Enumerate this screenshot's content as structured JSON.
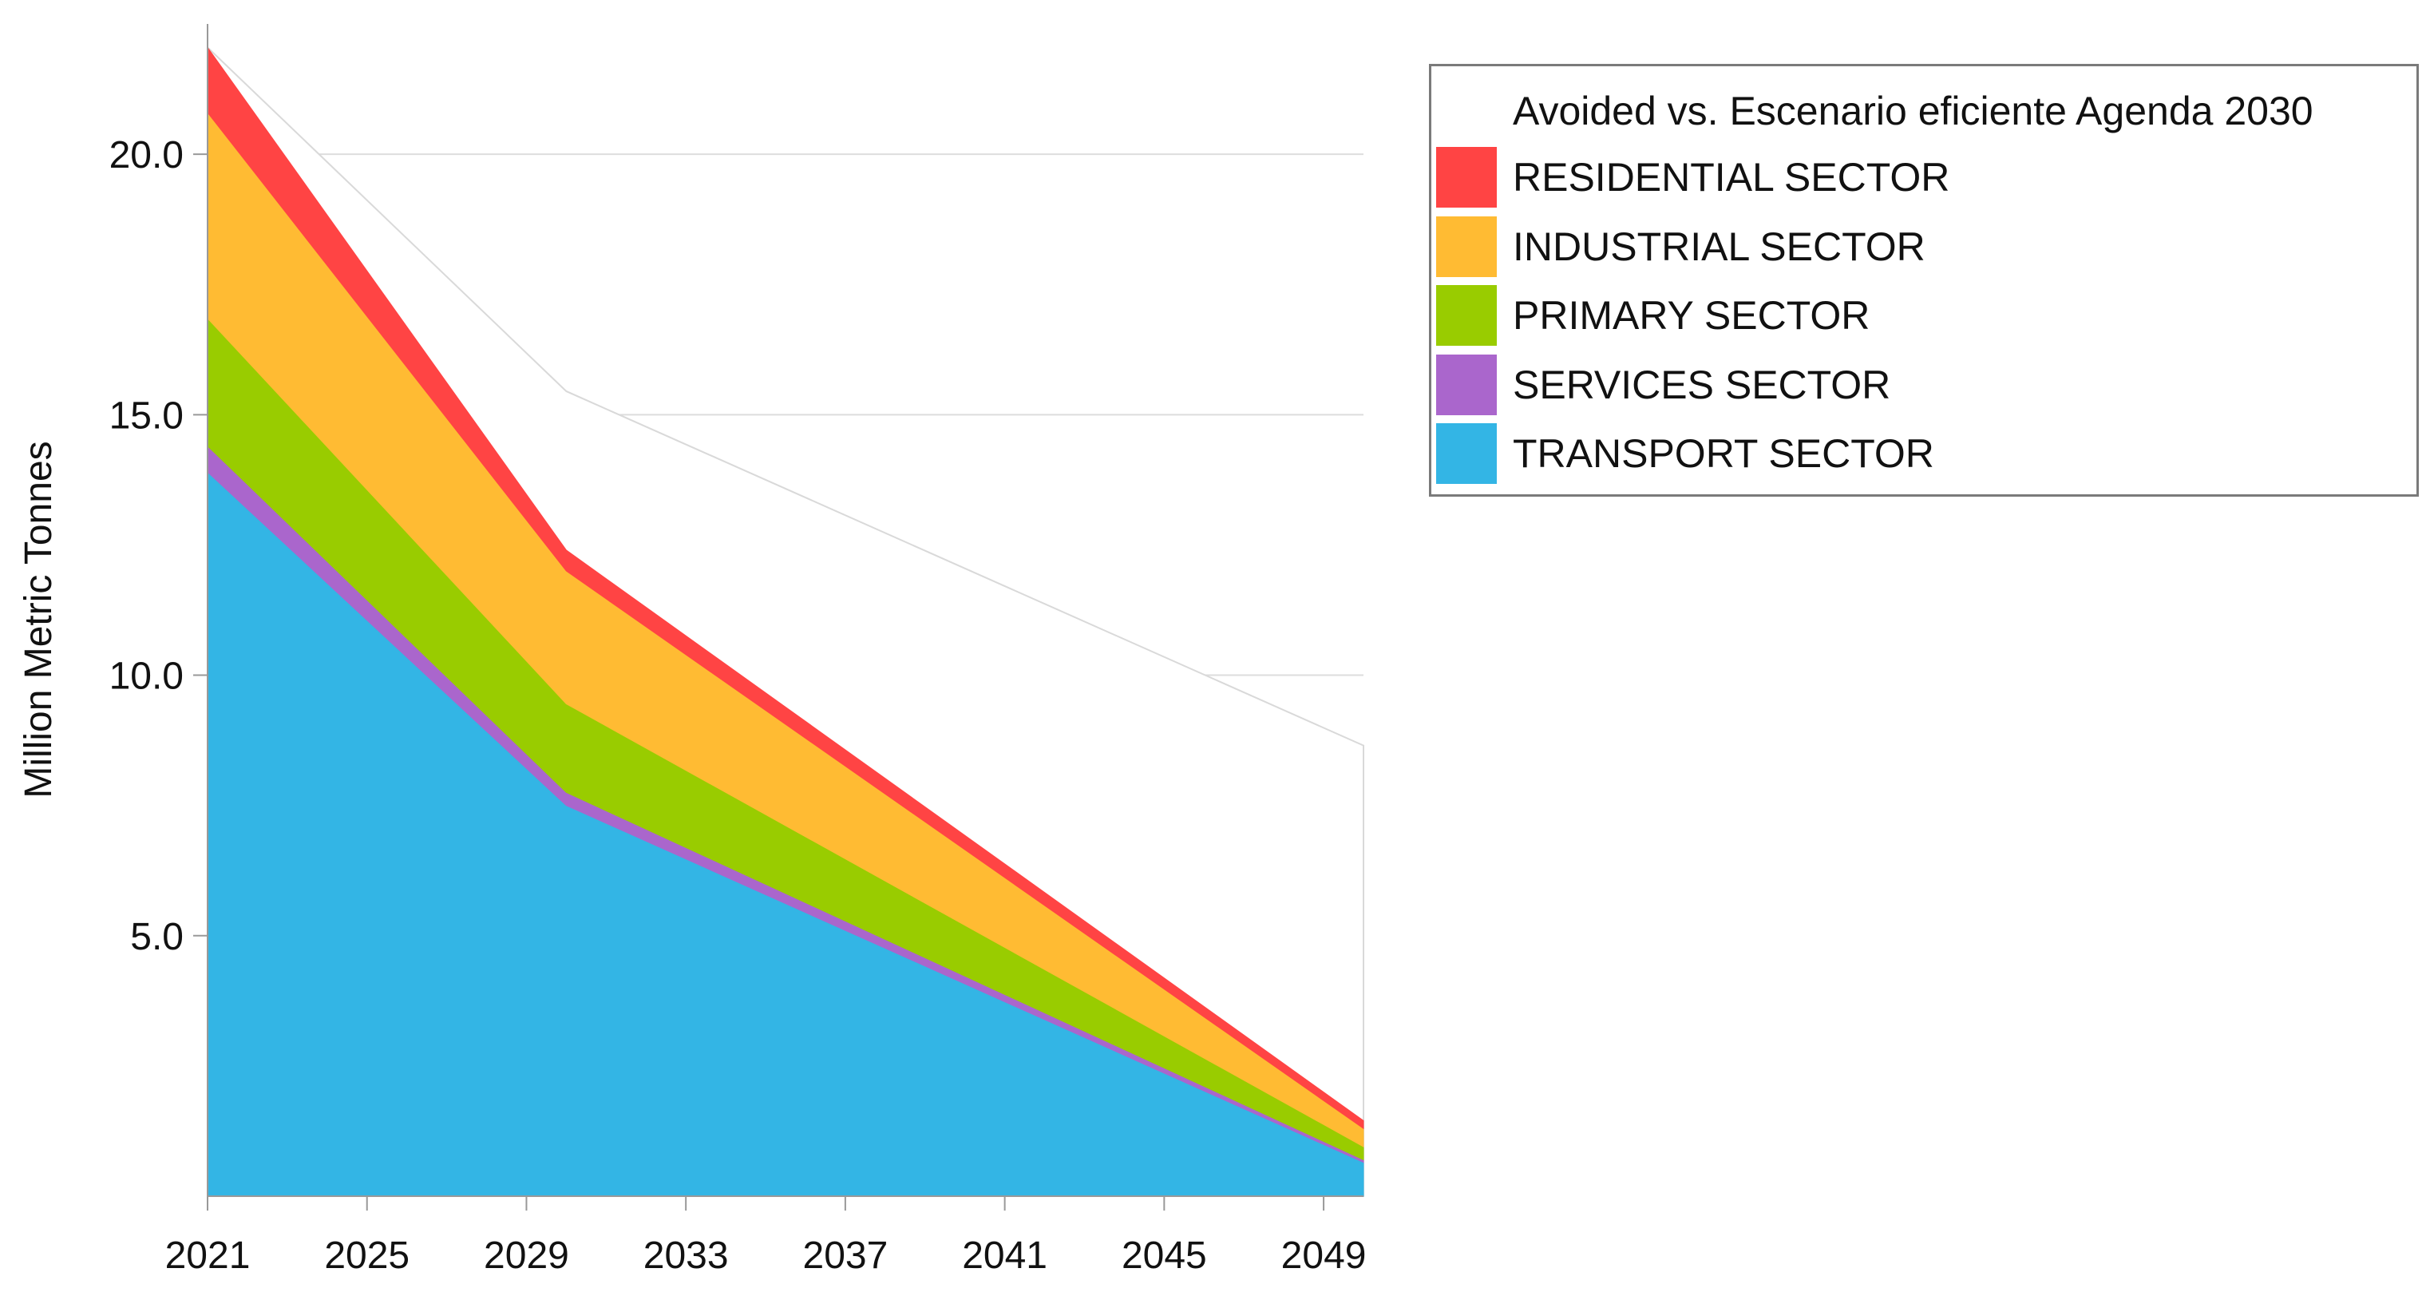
{
  "chart_data": {
    "type": "area",
    "stacked": true,
    "title": "",
    "xlabel": "",
    "ylabel": "Million Metric Tonnes",
    "x": [
      2021,
      2030,
      2050
    ],
    "xticks": [
      "2021",
      "2025",
      "2029",
      "2033",
      "2037",
      "2041",
      "2045",
      "2049"
    ],
    "xlim": [
      2021,
      2050
    ],
    "yticks": [
      "5.0",
      "10.0",
      "15.0",
      "20.0"
    ],
    "ylim": [
      0,
      22.5
    ],
    "grid": true,
    "legend_position": "top-right",
    "legend_title": "Avoided vs. Escenario eficiente Agenda 2030",
    "series": [
      {
        "name": "TRANSPORT SECTOR",
        "color": "#33b5e5",
        "values": [
          13.9,
          7.5,
          0.65
        ]
      },
      {
        "name": "SERVICES SECTOR",
        "color": "#aa66cc",
        "values": [
          0.5,
          0.25,
          0.05
        ]
      },
      {
        "name": "PRIMARY SECTOR",
        "color": "#99cc00",
        "values": [
          2.45,
          1.7,
          0.25
        ]
      },
      {
        "name": "INDUSTRIAL SECTOR",
        "color": "#ffbb33",
        "values": [
          3.95,
          2.55,
          0.35
        ]
      },
      {
        "name": "RESIDENTIAL SECTOR",
        "color": "#ff4444",
        "values": [
          1.25,
          0.4,
          0.15
        ]
      }
    ],
    "avoided_total": {
      "name": "Avoided vs. Escenario eficiente Agenda 2030",
      "color": "#ffffff",
      "values": [
        22.05,
        15.45,
        8.65
      ]
    }
  }
}
